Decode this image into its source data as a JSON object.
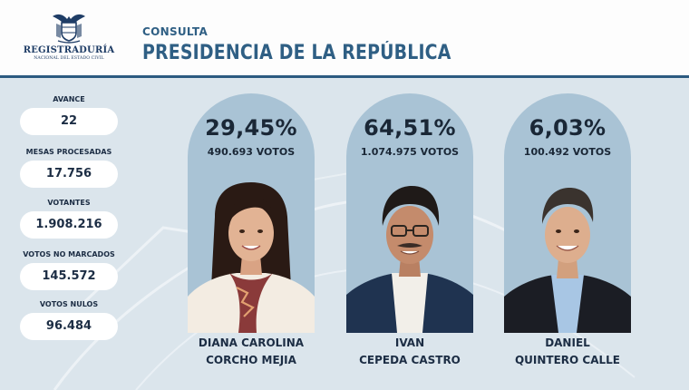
{
  "header": {
    "logo": {
      "name": "REGISTRADURÍA",
      "subtitle": "NACIONAL DEL ESTADO CIVIL"
    },
    "kicker": "CONSULTA",
    "title": "PRESIDENCIA DE LA REPÚBLICA"
  },
  "colors": {
    "primary": "#2f5f84",
    "rule": "#2b5a80",
    "panel_bg": "#dbe5ec",
    "card_bg": "#a9c3d5",
    "dark_text": "#1c2d44"
  },
  "stats": [
    {
      "label": "AVANCE",
      "value": "22"
    },
    {
      "label": "MESAS PROCESADAS",
      "value": "17.756"
    },
    {
      "label": "VOTANTES",
      "value": "1.908.216"
    },
    {
      "label": "VOTOS NO MARCADOS",
      "value": "145.572"
    },
    {
      "label": "VOTOS NULOS",
      "value": "96.484"
    }
  ],
  "candidates": [
    {
      "percent": "29,45%",
      "votes": "490.693 VOTOS",
      "name_line1": "DIANA CAROLINA",
      "name_line2": "CORCHO MEJIA",
      "share": 29.45
    },
    {
      "percent": "64,51%",
      "votes": "1.074.975 VOTOS",
      "name_line1": "IVAN",
      "name_line2": "CEPEDA CASTRO",
      "share": 64.51
    },
    {
      "percent": "6,03%",
      "votes": "100.492 VOTOS",
      "name_line1": "DANIEL",
      "name_line2": "QUINTERO CALLE",
      "share": 6.03
    }
  ]
}
